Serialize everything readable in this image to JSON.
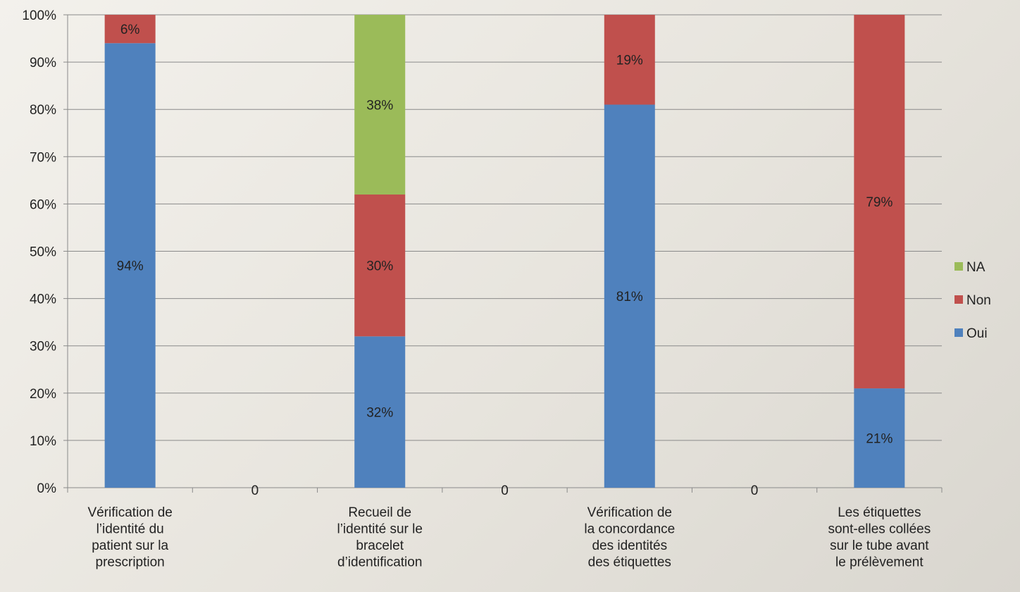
{
  "chart_data": {
    "type": "bar",
    "stacked": true,
    "normalized": true,
    "title": "",
    "xlabel": "",
    "ylabel": "",
    "ylim": [
      0,
      100
    ],
    "y_ticks": [
      "0%",
      "10%",
      "20%",
      "30%",
      "40%",
      "50%",
      "60%",
      "70%",
      "80%",
      "90%",
      "100%"
    ],
    "grid": true,
    "legend_position": "right",
    "categories": [
      [
        "Vérification de",
        "l’identité du",
        "patient sur la",
        "prescription"
      ],
      [
        "0"
      ],
      [
        "Recueil de",
        "l’identité sur le",
        "bracelet",
        "d’identification"
      ],
      [
        "0"
      ],
      [
        "Vérification de",
        "la concordance",
        "des identités",
        "des  étiquettes"
      ],
      [
        "0"
      ],
      [
        "Les étiquettes",
        "sont-elles collées",
        "sur le tube avant",
        "le prélèvement"
      ]
    ],
    "series": [
      {
        "name": "Oui",
        "color": "#4f81bd",
        "values": [
          94,
          null,
          32,
          null,
          81,
          null,
          21
        ],
        "labels": [
          "94%",
          null,
          "32%",
          null,
          "81%",
          null,
          "21%"
        ]
      },
      {
        "name": "Non",
        "color": "#c0504d",
        "values": [
          6,
          null,
          30,
          null,
          19,
          null,
          79
        ],
        "labels": [
          "6%",
          null,
          "30%",
          null,
          "19%",
          null,
          "79%"
        ]
      },
      {
        "name": "NA",
        "color": "#9bbb59",
        "values": [
          null,
          null,
          38,
          null,
          null,
          null,
          null
        ],
        "labels": [
          null,
          null,
          "38%",
          null,
          null,
          null,
          null
        ]
      }
    ],
    "legend_order": [
      "NA",
      "Non",
      "Oui"
    ]
  }
}
